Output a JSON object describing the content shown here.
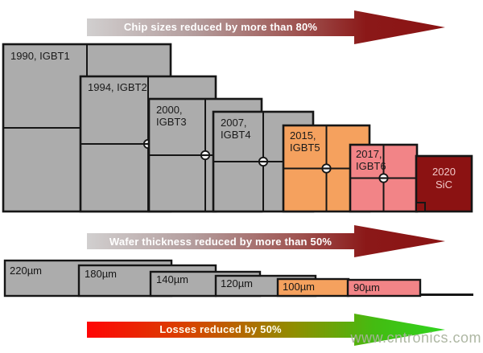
{
  "arrows": [
    {
      "label": "Chip sizes reduced by more than 80%"
    },
    {
      "label": "Wafer thickness reduced by more than 50%"
    },
    {
      "label": "Losses reduced by  50%"
    }
  ],
  "chips": [
    {
      "label": "1990, IGBT1",
      "fill": "#ACACAC"
    },
    {
      "label": "1994, IGBT2",
      "fill": "#ACACAC"
    },
    {
      "label": "2000,\nIGBT3",
      "fill": "#ACACAC"
    },
    {
      "label": "2007,\nIGBT4",
      "fill": "#ACACAC"
    },
    {
      "label": "2015,\nIGBT5",
      "fill": "#F5A15E"
    },
    {
      "label": "2017,\nIGBT6",
      "fill": "#F28487"
    },
    {
      "label": "2020\nSiC",
      "fill": "#8B1212"
    }
  ],
  "wafers": [
    {
      "label": "220µm",
      "fill": "#ACACAC"
    },
    {
      "label": "180µm",
      "fill": "#ACACAC"
    },
    {
      "label": "140µm",
      "fill": "#ACACAC"
    },
    {
      "label": "120µm",
      "fill": "#ACACAC"
    },
    {
      "label": "100µm",
      "fill": "#F5A15E"
    },
    {
      "label": "90µm",
      "fill": "#F28487"
    }
  ],
  "colors": {
    "edge": "#161616",
    "arrow_gray_start": "#D1CFCF",
    "arrow_dark_red": "#8B1414",
    "loss_red": "#FF0505",
    "loss_green": "#30D51F",
    "sic_text": "#F2C8C8"
  },
  "watermark": "www.cntronics.com"
}
